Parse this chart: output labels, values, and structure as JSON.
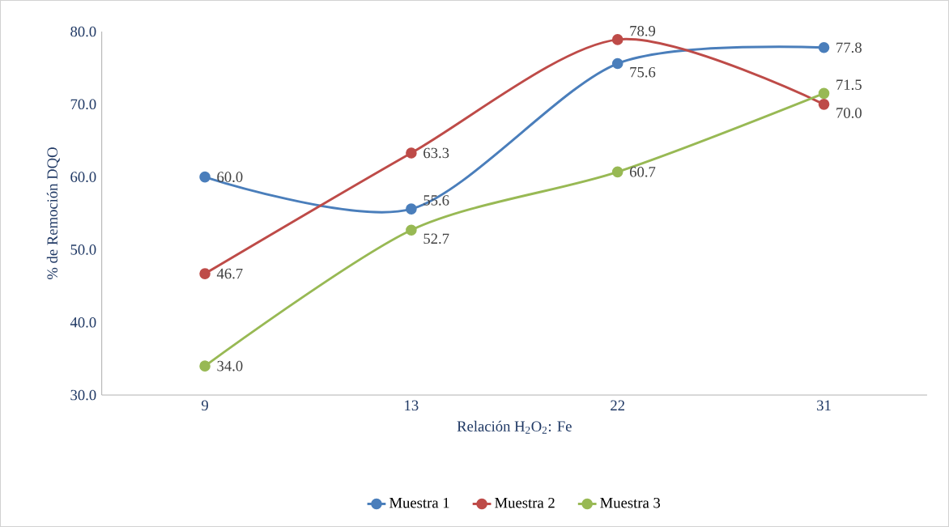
{
  "chart_data": {
    "type": "line",
    "xlabel": "Relación H$_{2}$O$_{2}$: Fe",
    "ylabel": "% de Remoción DQO",
    "categories": [
      "9",
      "13",
      "22",
      "31"
    ],
    "series": [
      {
        "name": "Muestra 1",
        "color": "#4a7ebb",
        "values": [
          60.0,
          55.6,
          75.6,
          77.8
        ],
        "value_labels": [
          "60.0",
          "55.6",
          "75.6",
          "77.8"
        ]
      },
      {
        "name": "Muestra 2",
        "color": "#be4b48",
        "values": [
          46.7,
          63.3,
          78.9,
          70.0
        ],
        "value_labels": [
          "46.7",
          "63.3",
          "78.9",
          "70.0"
        ]
      },
      {
        "name": "Muestra 3",
        "color": "#98b954",
        "values": [
          34.0,
          52.7,
          60.7,
          71.5
        ],
        "value_labels": [
          "34.0",
          "52.7",
          "60.7",
          "71.5"
        ]
      }
    ],
    "ylim": [
      30,
      80
    ],
    "yticks": [
      {
        "value": 30,
        "label": "30.0"
      },
      {
        "value": 40,
        "label": "40.0"
      },
      {
        "value": 50,
        "label": "50.0"
      },
      {
        "value": 60,
        "label": "60.0"
      },
      {
        "value": 70,
        "label": "70.0"
      },
      {
        "value": 80,
        "label": "80.0"
      }
    ],
    "grid": false,
    "legend": "bottom",
    "marker": "circle",
    "line_style": "solid"
  }
}
